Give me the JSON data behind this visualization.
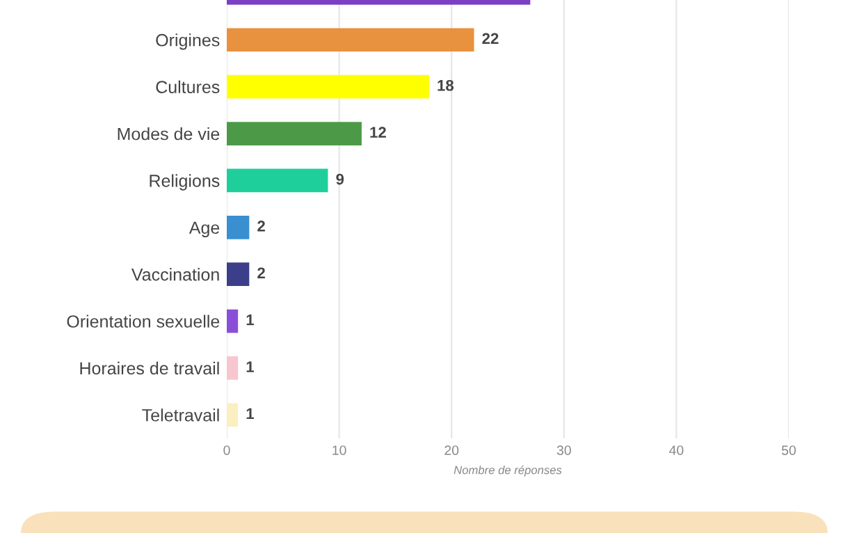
{
  "chart_data": {
    "type": "bar",
    "orientation": "horizontal",
    "xlabel": "Nombre de réponses",
    "categories": [
      null,
      "Origines",
      "Cultures",
      "Modes de vie",
      "Religions",
      "Age",
      "Vaccination",
      "Orientation sexuelle",
      "Horaires de travail",
      "Teletravail"
    ],
    "values": [
      27,
      22,
      18,
      12,
      9,
      2,
      2,
      1,
      1,
      1
    ],
    "value_labels": [
      null,
      "22",
      "18",
      "12",
      "9",
      "2",
      "2",
      "1",
      "1",
      "1"
    ],
    "colors": [
      "#7b3fc4",
      "#e8913f",
      "#ffff00",
      "#4c9a48",
      "#1fcf9b",
      "#3a8fd0",
      "#3b3f8a",
      "#8a4fd8",
      "#f7c6cf",
      "#fbeec0"
    ],
    "xlim": [
      0,
      50
    ],
    "xticks": [
      0,
      10,
      20,
      30,
      40,
      50
    ],
    "grid": "x",
    "legend": false
  }
}
